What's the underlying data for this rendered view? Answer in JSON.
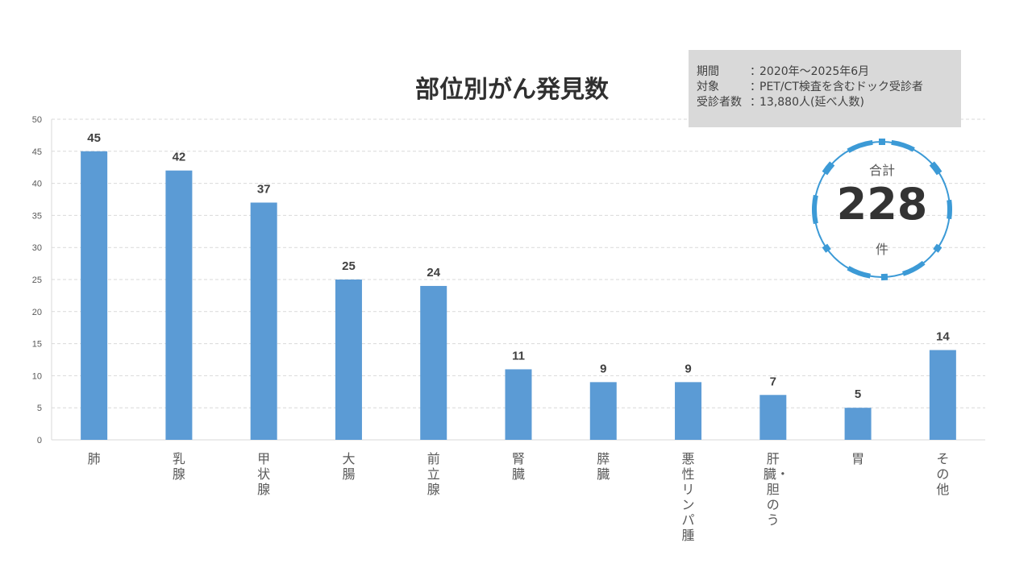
{
  "chart_data": {
    "type": "bar",
    "title": "部位別がん発見数",
    "categories": [
      "肺",
      "乳腺",
      "甲状腺",
      "大腸",
      "前立腺",
      "腎臓",
      "膵臓",
      "悪性リンパ腫",
      "肝臓・胆のう",
      "胃",
      "その他"
    ],
    "values": [
      45,
      42,
      37,
      25,
      24,
      11,
      9,
      9,
      7,
      5,
      14
    ],
    "ylim": [
      0,
      50
    ],
    "yticks": [
      "0",
      "5",
      "10",
      "15",
      "20",
      "25",
      "30",
      "35",
      "40",
      "45",
      "50"
    ],
    "grid": true,
    "bar_color": "#5b9bd5"
  },
  "info": {
    "rows": [
      {
        "label": "期間",
        "colon": "：",
        "value": "2020年～2025年6月"
      },
      {
        "label": "対象",
        "colon": "：",
        "value": "PET/CT検査を含むドック受診者"
      },
      {
        "label": "受診者数",
        "colon": "：",
        "value": "13,880人(延べ人数)"
      }
    ]
  },
  "total": {
    "label": "合計",
    "value": "228",
    "unit": "件",
    "ring_color": "#3c9ad6"
  }
}
